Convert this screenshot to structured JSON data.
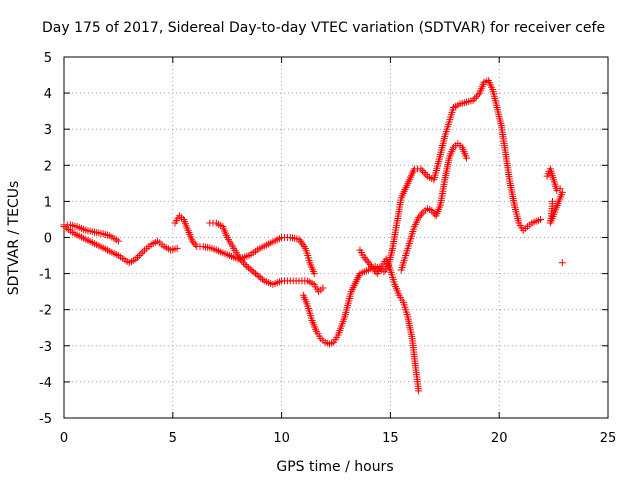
{
  "chart_data": {
    "type": "scatter",
    "title": "Day 175 of 2017, Sidereal Day-to-day VTEC variation (SDTVAR) for receiver cefe",
    "xlabel": "GPS time / hours",
    "ylabel": "SDTVAR / TECUs",
    "xlim": [
      0,
      25
    ],
    "ylim": [
      -5,
      5
    ],
    "xticks": [
      0,
      5,
      10,
      15,
      20,
      25
    ],
    "yticks": [
      -5,
      -4,
      -3,
      -2,
      -1,
      0,
      1,
      2,
      3,
      4,
      5
    ],
    "grid": true,
    "marker": "+",
    "color": "#ff0000",
    "series": [
      {
        "x": [
          0,
          0.3,
          0.6,
          1,
          1.4,
          1.8,
          2.1,
          2.5
        ],
        "y": [
          0.35,
          0.35,
          0.3,
          0.2,
          0.15,
          0.1,
          0.05,
          -0.1
        ]
      },
      {
        "x": [
          0,
          0.5,
          1,
          1.5,
          2,
          2.5,
          3,
          3.3,
          3.7,
          4,
          4.3,
          4.6,
          4.9,
          5.2
        ],
        "y": [
          0.3,
          0.1,
          -0.05,
          -0.2,
          -0.35,
          -0.5,
          -0.7,
          -0.6,
          -0.35,
          -0.2,
          -0.1,
          -0.25,
          -0.35,
          -0.3
        ]
      },
      {
        "x": [
          5.1,
          5.3,
          5.5,
          5.7,
          5.9,
          6.1,
          6.4,
          6.8,
          7.2,
          7.6,
          8,
          8.5,
          9,
          9.5,
          10,
          10.4,
          10.8,
          11.1,
          11.3,
          11.5
        ],
        "y": [
          0.4,
          0.6,
          0.5,
          0.2,
          -0.1,
          -0.25,
          -0.25,
          -0.3,
          -0.4,
          -0.5,
          -0.6,
          -0.5,
          -0.3,
          -0.15,
          0,
          0,
          -0.05,
          -0.3,
          -0.7,
          -1.0
        ]
      },
      {
        "x": [
          6.7,
          7,
          7.3,
          7.5,
          7.8,
          8.1,
          8.4,
          8.8,
          9.2,
          9.6,
          10,
          10.4,
          10.8,
          11.2,
          11.5,
          11.7,
          11.9
        ],
        "y": [
          0.4,
          0.4,
          0.3,
          0,
          -0.3,
          -0.6,
          -0.8,
          -1.0,
          -1.2,
          -1.3,
          -1.2,
          -1.2,
          -1.2,
          -1.2,
          -1.3,
          -1.5,
          -1.4
        ]
      },
      {
        "x": [
          11,
          11.2,
          11.4,
          11.6,
          11.8,
          12,
          12.2,
          12.4,
          12.6,
          12.9,
          13.2,
          13.6,
          14,
          14.3,
          14.5,
          14.7,
          14.9,
          15.1,
          15.3,
          15.5,
          15.8,
          16.1,
          16.4,
          16.7,
          17,
          17.3,
          17.5,
          17.7,
          17.9,
          18.2,
          18.5,
          18.8,
          19.1,
          19.3,
          19.5,
          19.7,
          19.9,
          20.1,
          20.3,
          20.5,
          20.7,
          20.9,
          21.1,
          21.3,
          21.5,
          21.7,
          21.9
        ],
        "y": [
          -1.6,
          -1.9,
          -2.3,
          -2.6,
          -2.8,
          -2.9,
          -2.95,
          -2.9,
          -2.7,
          -2.2,
          -1.5,
          -1.0,
          -0.9,
          -0.8,
          -0.85,
          -0.95,
          -0.8,
          -0.3,
          0.4,
          1.1,
          1.5,
          1.9,
          1.9,
          1.7,
          1.6,
          2.3,
          2.8,
          3.2,
          3.6,
          3.7,
          3.75,
          3.8,
          4.0,
          4.3,
          4.35,
          4.1,
          3.6,
          3.1,
          2.3,
          1.5,
          0.9,
          0.4,
          0.2,
          0.3,
          0.4,
          0.45,
          0.5
        ]
      },
      {
        "x": [
          13.6,
          13.8,
          14,
          14.2,
          14.4,
          14.6,
          14.8,
          15,
          15.2,
          15.4,
          15.6,
          15.8,
          16,
          16.1,
          16.2,
          16.3
        ],
        "y": [
          -0.35,
          -0.55,
          -0.7,
          -0.85,
          -1.0,
          -0.8,
          -0.6,
          -0.9,
          -1.3,
          -1.6,
          -1.8,
          -2.2,
          -2.8,
          -3.3,
          -3.8,
          -4.25
        ]
      },
      {
        "x": [
          15.5,
          15.7,
          15.9,
          16.1,
          16.3,
          16.5,
          16.7,
          16.9,
          17.1,
          17.3,
          17.5,
          17.7,
          17.9,
          18.1,
          18.3,
          18.5
        ],
        "y": [
          -0.9,
          -0.5,
          -0.1,
          0.3,
          0.55,
          0.7,
          0.8,
          0.75,
          0.6,
          0.9,
          1.6,
          2.2,
          2.5,
          2.6,
          2.5,
          2.2
        ]
      },
      {
        "x": [
          22.2,
          22.35,
          22.5,
          22.65,
          22.8,
          22.9,
          22.35,
          22.4,
          22.45,
          22.9
        ],
        "y": [
          1.7,
          1.9,
          1.6,
          1.3,
          1.35,
          1.25,
          0.4,
          0.6,
          1.0,
          -0.7
        ]
      }
    ]
  }
}
